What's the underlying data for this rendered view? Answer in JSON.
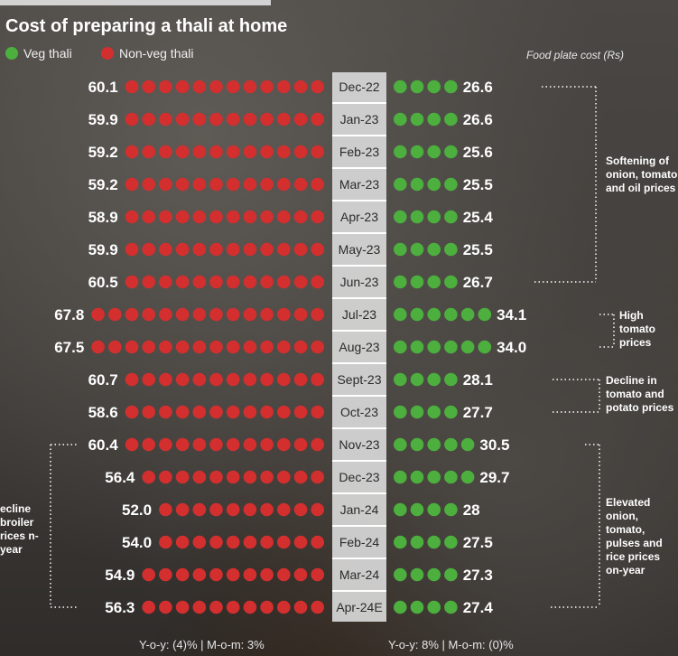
{
  "title": "Cost of preparing a thali at home",
  "legend": {
    "veg": "Veg thali",
    "nonveg": "Non-veg thali"
  },
  "unit_label": "Food plate cost (Rs)",
  "colors": {
    "veg": "#4caf3e",
    "nonveg": "#d32f2f",
    "text": "#ffffff",
    "label_bg": "#d8d8d8"
  },
  "footer": {
    "nonveg": "Y-o-y: (4)% | M-o-m: 3%",
    "veg": "Y-o-y: 8% | M-o-m: (0)%"
  },
  "annotations": {
    "softening": "Softening of onion, tomato and oil prices",
    "high_tomato": "High tomato prices",
    "decline_tomato": "Decline in tomato and potato prices",
    "elevated": "Elevated onion, tomato, pulses and rice prices on-year",
    "decline_broiler": "ecline broiler rices n-year"
  },
  "chart_data": {
    "type": "dot-bar",
    "title": "Cost of preparing a thali at home",
    "unit": "Food plate cost (Rs)",
    "categories": [
      "Dec-22",
      "Jan-23",
      "Feb-23",
      "Mar-23",
      "Apr-23",
      "May-23",
      "Jun-23",
      "Jul-23",
      "Aug-23",
      "Sept-23",
      "Oct-23",
      "Nov-23",
      "Dec-23",
      "Jan-24",
      "Feb-24",
      "Mar-24",
      "Apr-24E"
    ],
    "series": [
      {
        "name": "Non-veg thali",
        "values": [
          60.1,
          59.9,
          59.2,
          59.2,
          58.9,
          59.9,
          60.5,
          67.8,
          67.5,
          60.7,
          58.6,
          60.4,
          56.4,
          52.0,
          54.0,
          54.9,
          56.3
        ],
        "labels": [
          "60.1",
          "59.9",
          "59.2",
          "59.2",
          "58.9",
          "59.9",
          "60.5",
          "67.8",
          "67.5",
          "60.7",
          "58.6",
          "60.4",
          "56.4",
          "52.0",
          "54.0",
          "54.9",
          "56.3"
        ]
      },
      {
        "name": "Veg thali",
        "values": [
          26.6,
          26.6,
          25.6,
          25.5,
          25.4,
          25.5,
          26.7,
          34.1,
          34.0,
          28.1,
          27.7,
          30.5,
          29.7,
          28,
          27.5,
          27.3,
          27.4
        ],
        "labels": [
          "26.6",
          "26.6",
          "25.6",
          "25.5",
          "25.4",
          "25.5",
          "26.7",
          "34.1",
          "34.0",
          "28.1",
          "27.7",
          "30.5",
          "29.7",
          "28",
          "27.5",
          "27.3",
          "27.4"
        ]
      }
    ]
  }
}
